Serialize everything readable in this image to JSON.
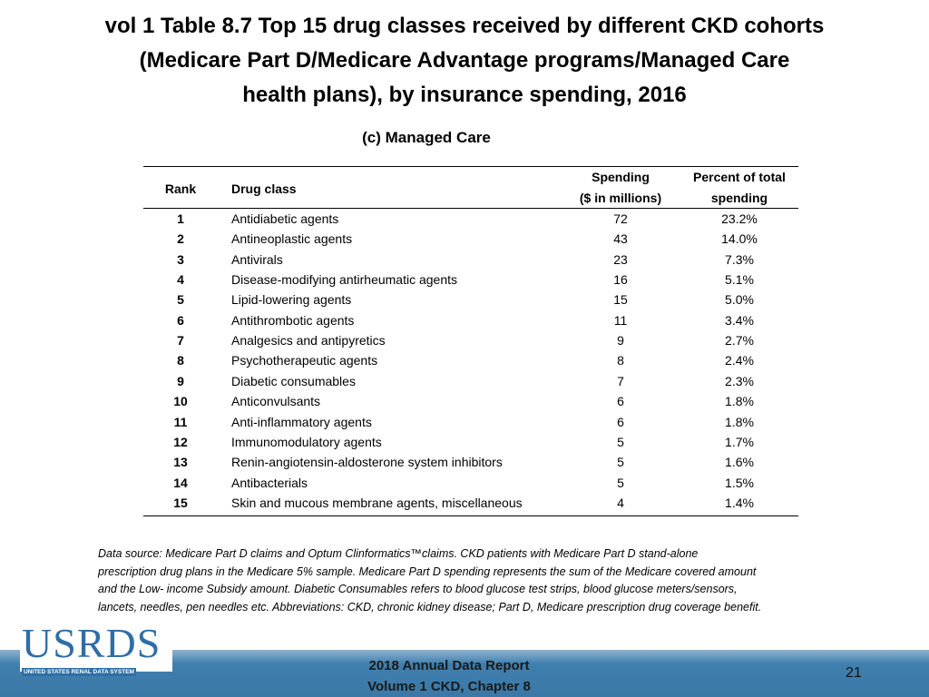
{
  "slide": {
    "title": [
      "vol 1 Table 8.7 Top 15 drug classes received by different CKD cohorts",
      "(Medicare Part D/Medicare Advantage programs/Managed Care",
      "health plans), by insurance spending, 2016"
    ],
    "subtitle": "(c) Managed Care",
    "table": {
      "header": [
        [
          "Rank"
        ],
        [
          "Drug class"
        ],
        [
          "Spending",
          "($ in millions)"
        ],
        [
          "Percent of total",
          "spending"
        ]
      ],
      "rows": [
        [
          1,
          "Antidiabetic agents",
          72,
          "23.2%"
        ],
        [
          2,
          "Antineoplastic agents",
          43,
          "14.0%"
        ],
        [
          3,
          "Antivirals",
          23,
          "7.3%"
        ],
        [
          4,
          "Disease-modifying antirheumatic agents",
          16,
          "5.1%"
        ],
        [
          5,
          "Lipid-lowering agents",
          15,
          "5.0%"
        ],
        [
          6,
          "Antithrombotic agents",
          11,
          "3.4%"
        ],
        [
          7,
          "Analgesics and antipyretics",
          9,
          "2.7%"
        ],
        [
          8,
          "Psychotherapeutic agents",
          8,
          "2.4%"
        ],
        [
          9,
          "Diabetic consumables",
          7,
          "2.3%"
        ],
        [
          10,
          "Anticonvulsants",
          6,
          "1.8%"
        ],
        [
          11,
          "Anti-inflammatory agents",
          6,
          "1.8%"
        ],
        [
          12,
          "Immunomodulatory agents",
          5,
          "1.7%"
        ],
        [
          13,
          "Renin-angiotensin-aldosterone system inhibitors",
          5,
          "1.6%"
        ],
        [
          14,
          "Antibacterials",
          5,
          "1.5%"
        ],
        [
          15,
          "Skin and mucous membrane agents, miscellaneous",
          4,
          "1.4%"
        ]
      ]
    },
    "footnote": [
      "Data source: Medicare Part D claims and Optum Clinformatics™claims. CKD patients with Medicare Part D stand-alone",
      "prescription drug plans in the Medicare 5% sample. Medicare Part D spending represents the sum of the Medicare covered amount",
      "and the Low- income Subsidy amount. Diabetic Consumables refers to blood glucose test strips, blood glucose meters/sensors,",
      "lancets, needles, pen needles etc. Abbreviations: CKD, chronic kidney disease; Part D, Medicare prescription drug coverage benefit."
    ],
    "logo": {
      "name": "USRDS",
      "tagline": "UNITED STATES RENAL DATA SYSTEM"
    },
    "footer": [
      "2018 Annual Data Report",
      "Volume 1 CKD, Chapter 8"
    ],
    "page_number": 21
  }
}
